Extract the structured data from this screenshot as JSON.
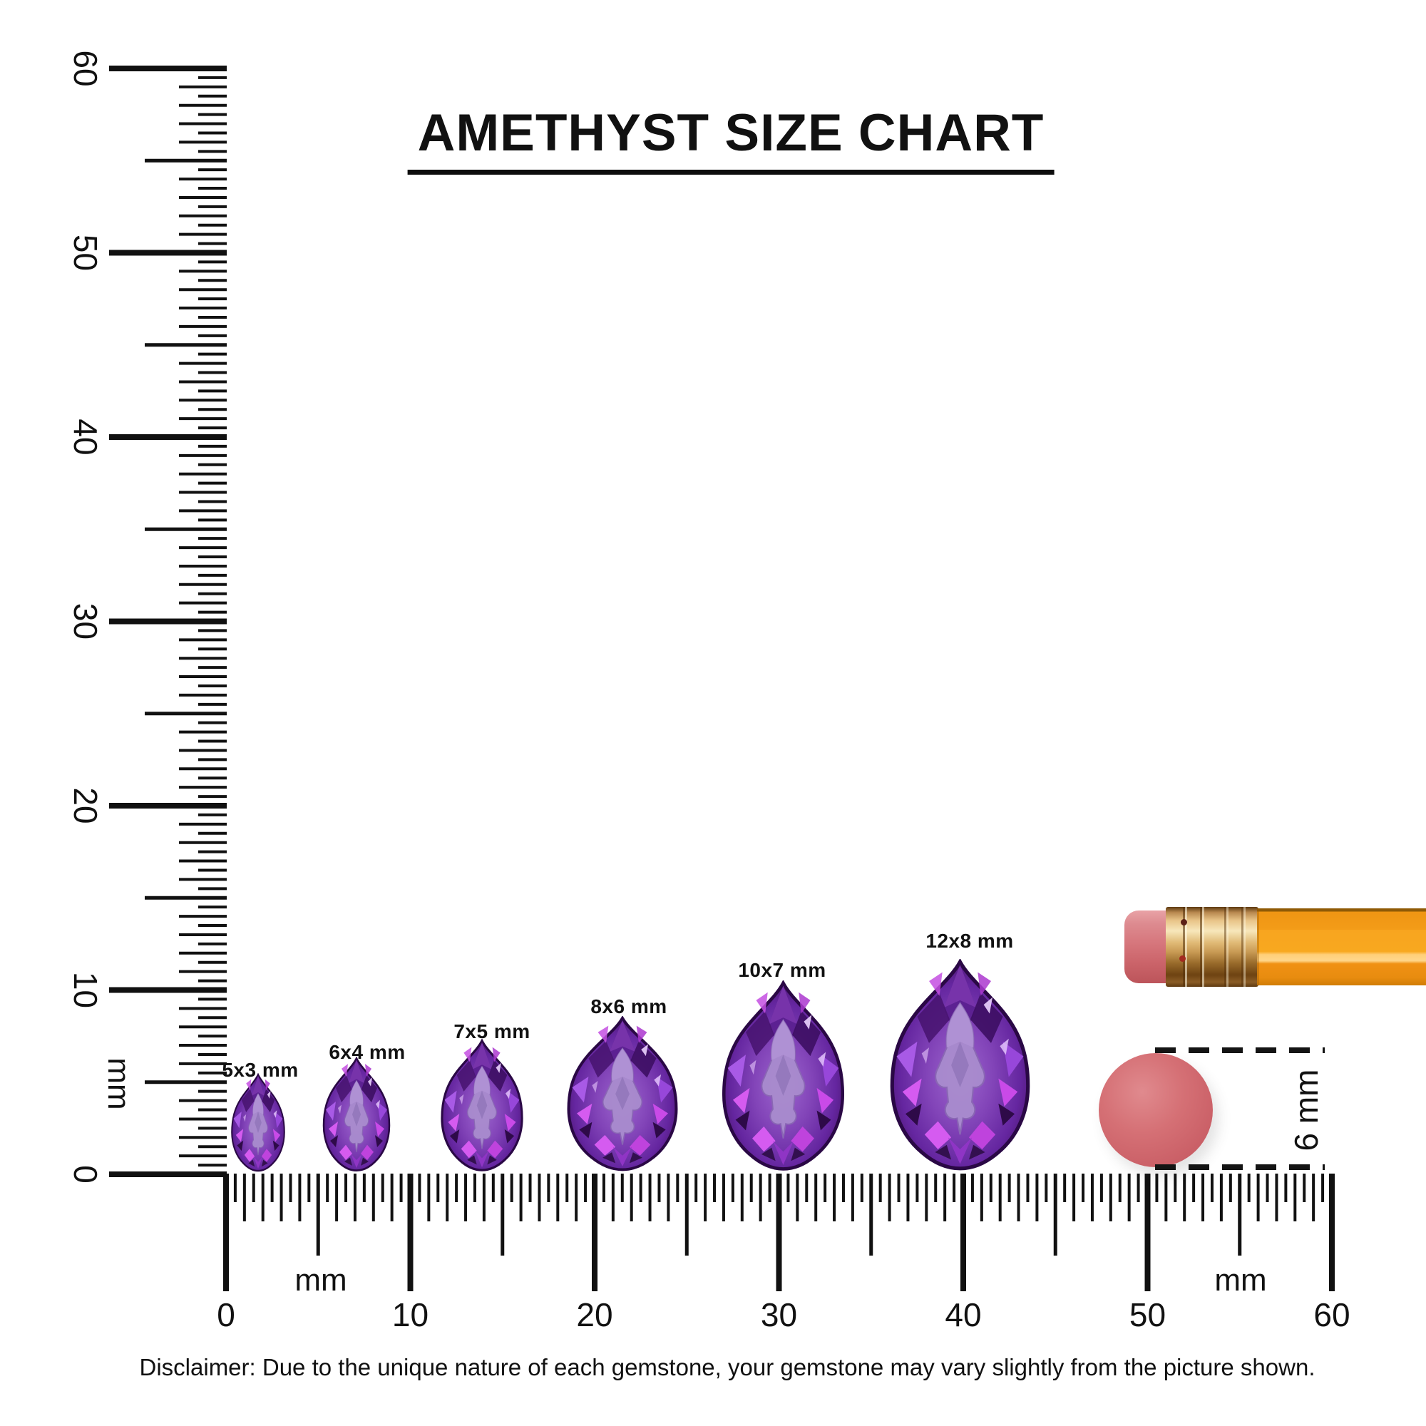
{
  "title": "AMETHYST SIZE CHART",
  "gems": [
    {
      "label": "5x3 mm",
      "length_mm": 5,
      "width_mm": 3
    },
    {
      "label": "6x4 mm",
      "length_mm": 6,
      "width_mm": 4
    },
    {
      "label": "7x5 mm",
      "length_mm": 7,
      "width_mm": 5
    },
    {
      "label": "8x6 mm",
      "length_mm": 8,
      "width_mm": 6
    },
    {
      "label": "10x7 mm",
      "length_mm": 10,
      "width_mm": 7
    },
    {
      "label": "12x8 mm",
      "length_mm": 12,
      "width_mm": 8
    }
  ],
  "rulers": {
    "unit_label": "mm",
    "min_mm": 0,
    "max_mm": 60,
    "minor_step_mm": 0.5,
    "numbered_step_mm": 10,
    "horizontal_numbers": [
      "0",
      "10",
      "20",
      "30",
      "40",
      "50",
      "60"
    ],
    "vertical_numbers": [
      "0",
      "10",
      "20",
      "30",
      "40",
      "50",
      "60"
    ]
  },
  "reference": {
    "disc_diameter_label": "6 mm"
  },
  "disclaimer": "Disclaimer: Due to the unique nature of each gemstone, your gemstone may vary slightly from the picture shown.",
  "colors": {
    "ink": "#111111",
    "amethyst_mid": "#7e3cb3",
    "amethyst_dark": "#45125f",
    "amethyst_light": "#a98cce",
    "amethyst_flash": "#d55bf0",
    "pencil_body_orange": "#f8a51f",
    "ferrule_gold": "#d8ab63",
    "eraser_pink": "#d6767c",
    "disc_coral": "#d2686d"
  }
}
